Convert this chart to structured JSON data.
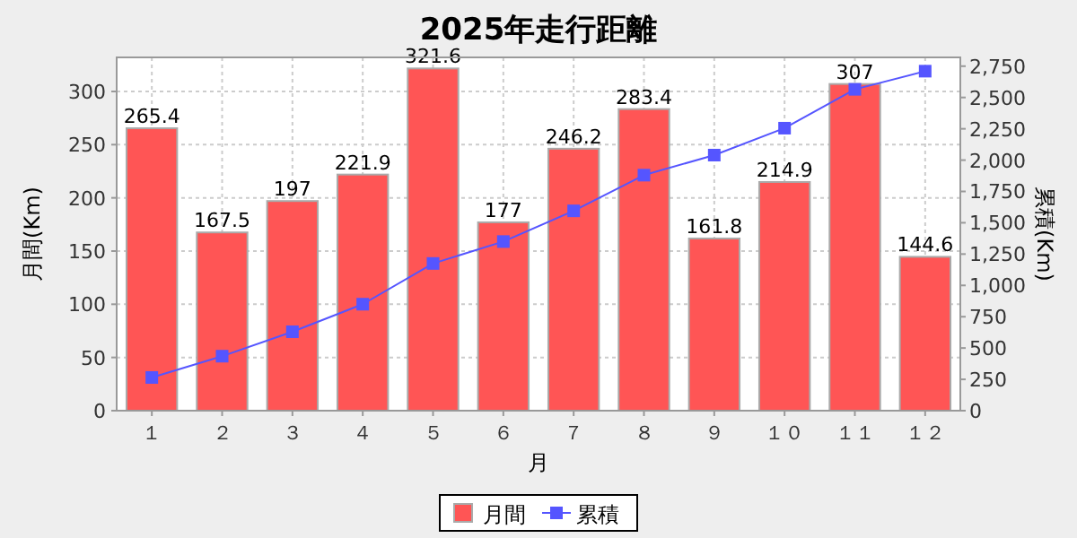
{
  "chart_data": {
    "type": "bar",
    "title": "2025年走行距離",
    "xlabel": "月",
    "ylabel": "月間(Km)",
    "y2label": "累積(Km)",
    "categories": [
      "１",
      "２",
      "３",
      "４",
      "５",
      "６",
      "７",
      "８",
      "９",
      "１０",
      "１１",
      "１２"
    ],
    "series": [
      {
        "name": "月間",
        "color": "#ff5555",
        "values": [
          265.4,
          167.5,
          197,
          221.9,
          321.6,
          177,
          246.2,
          283.4,
          161.8,
          214.9,
          307,
          144.6
        ],
        "value_labels": [
          "265.4",
          "167.5",
          "197",
          "221.9",
          "321.6",
          "177",
          "246.2",
          "283.4",
          "161.8",
          "214.9",
          "307",
          "144.6"
        ]
      },
      {
        "name": "累積",
        "type": "line",
        "axis": "y2",
        "color": "#5555ff",
        "marker": "square",
        "values": [
          265,
          435,
          630,
          850,
          1175,
          1350,
          1595,
          1880,
          2040,
          2255,
          2565,
          2710
        ]
      }
    ],
    "ylim": [
      0,
      332
    ],
    "yticks": [
      0,
      50,
      100,
      150,
      200,
      250,
      300
    ],
    "y2lim": [
      0,
      2820
    ],
    "y2ticks": [
      0,
      250,
      500,
      750,
      {
        "value": 1000,
        "label": "1,000"
      },
      {
        "value": 1250,
        "label": "1,250"
      },
      {
        "value": 1500,
        "label": "1,500"
      },
      {
        "value": 1750,
        "label": "1,750"
      },
      {
        "value": 2000,
        "label": "2,000"
      },
      {
        "value": 2250,
        "label": "2,250"
      },
      {
        "value": 2500,
        "label": "2,500"
      },
      {
        "value": 2750,
        "label": "2,750"
      }
    ],
    "grid": true,
    "legend": "bottom"
  }
}
